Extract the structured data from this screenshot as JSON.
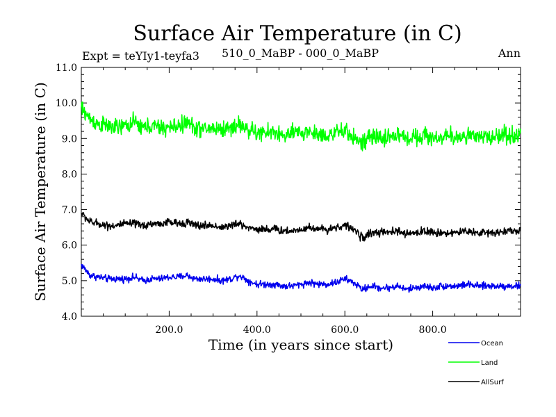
{
  "chart_data": {
    "type": "line",
    "title": "Surface Air Temperature (in C)",
    "subtitle_left": "Expt = teYIy1-teyfa3",
    "subtitle_center": "510_0_MaBP - 000_0_MaBP",
    "subtitle_right": "Ann",
    "xlabel": "Time (in years since start)",
    "ylabel": "Surface Air Temperature (in C)",
    "xlim": [
      0,
      1000
    ],
    "ylim": [
      4.0,
      11.0
    ],
    "x_ticks": [
      200,
      400,
      600,
      800
    ],
    "x_tick_labels": [
      "200.0",
      "400.0",
      "600.0",
      "800.0"
    ],
    "y_ticks": [
      4,
      5,
      6,
      7,
      8,
      9,
      10,
      11
    ],
    "y_tick_labels": [
      "4.0",
      "5.0",
      "6.0",
      "7.0",
      "8.0",
      "9.0",
      "10.0",
      "11.0"
    ],
    "legend_position": "bottom-right",
    "series": [
      {
        "name": "Ocean",
        "color": "#0000ee",
        "x_step": 20,
        "values": [
          5.45,
          5.15,
          5.1,
          5.05,
          5.05,
          5.05,
          5.1,
          5.0,
          5.05,
          5.05,
          5.1,
          5.1,
          5.15,
          5.05,
          5.05,
          5.05,
          5.0,
          5.05,
          5.15,
          5.0,
          4.9,
          4.9,
          4.9,
          4.85,
          4.85,
          4.9,
          4.95,
          4.9,
          4.9,
          4.95,
          5.05,
          4.95,
          4.75,
          4.85,
          4.8,
          4.8,
          4.85,
          4.75,
          4.8,
          4.85,
          4.8,
          4.85,
          4.85,
          4.85,
          4.9,
          4.85,
          4.85,
          4.85,
          4.85,
          4.85
        ]
      },
      {
        "name": "Land",
        "color": "#00ff00",
        "x_step": 20,
        "values": [
          9.85,
          9.55,
          9.4,
          9.35,
          9.3,
          9.35,
          9.45,
          9.3,
          9.35,
          9.3,
          9.3,
          9.35,
          9.45,
          9.3,
          9.25,
          9.3,
          9.25,
          9.3,
          9.4,
          9.25,
          9.15,
          9.15,
          9.2,
          9.05,
          9.15,
          9.15,
          9.2,
          9.1,
          9.1,
          9.15,
          9.2,
          9.05,
          8.85,
          9.05,
          9.0,
          9.05,
          9.1,
          9.0,
          9.05,
          9.1,
          9.0,
          9.05,
          9.05,
          9.05,
          9.1,
          9.0,
          9.05,
          9.05,
          9.1,
          9.1
        ]
      },
      {
        "name": "AllSurf",
        "color": "#000000",
        "x_step": 20,
        "values": [
          6.9,
          6.65,
          6.6,
          6.55,
          6.55,
          6.6,
          6.6,
          6.55,
          6.6,
          6.6,
          6.65,
          6.6,
          6.65,
          6.55,
          6.55,
          6.55,
          6.5,
          6.55,
          6.6,
          6.5,
          6.45,
          6.45,
          6.45,
          6.4,
          6.4,
          6.45,
          6.5,
          6.45,
          6.45,
          6.5,
          6.55,
          6.45,
          6.2,
          6.35,
          6.35,
          6.35,
          6.4,
          6.3,
          6.35,
          6.4,
          6.35,
          6.35,
          6.35,
          6.35,
          6.4,
          6.35,
          6.35,
          6.35,
          6.4,
          6.4
        ]
      }
    ]
  }
}
